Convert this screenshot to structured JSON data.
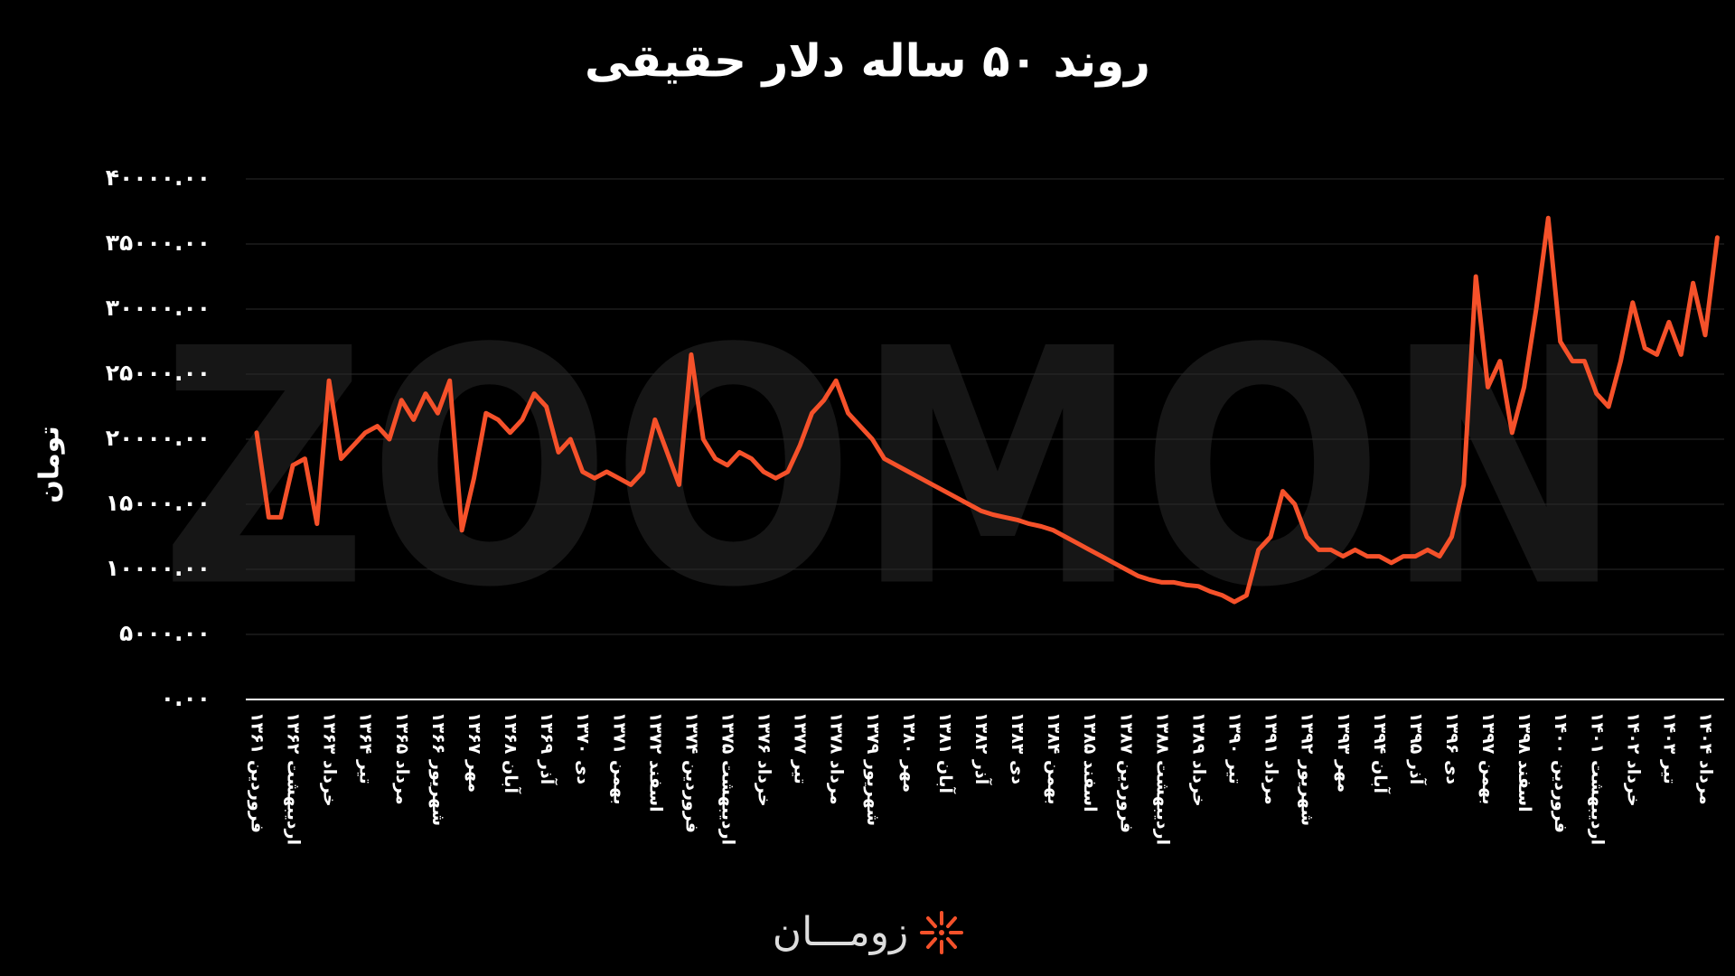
{
  "chart_data": {
    "type": "line",
    "title": "روند ۵۰ ساله دلار حقیقی",
    "y_label": "تومان",
    "watermark": "ZOOMON",
    "logo": "زومـــان",
    "color": "#f5512a",
    "grid": true,
    "ylim": [
      0,
      40000
    ],
    "yticks": [
      {
        "value": 0,
        "label": "۰.۰۰"
      },
      {
        "value": 5000,
        "label": "۵۰۰۰.۰۰"
      },
      {
        "value": 10000,
        "label": "۱۰۰۰۰.۰۰"
      },
      {
        "value": 15000,
        "label": "۱۵۰۰۰.۰۰"
      },
      {
        "value": 20000,
        "label": "۲۰۰۰۰.۰۰"
      },
      {
        "value": 25000,
        "label": "۲۵۰۰۰.۰۰"
      },
      {
        "value": 30000,
        "label": "۳۰۰۰۰.۰۰"
      },
      {
        "value": 35000,
        "label": "۳۵۰۰۰.۰۰"
      },
      {
        "value": 40000,
        "label": "۴۰۰۰۰.۰۰"
      }
    ],
    "categories": [
      "فروردین ۱۳۶۱",
      null,
      null,
      "اردیبهشت ۱۳۶۲",
      null,
      null,
      "خرداد ۱۳۶۳",
      null,
      null,
      "تیر ۱۳۶۴",
      null,
      null,
      "مرداد ۱۳۶۵",
      null,
      null,
      "شهریور ۱۳۶۶",
      null,
      null,
      "مهر ۱۳۶۷",
      null,
      null,
      "آبان ۱۳۶۸",
      null,
      null,
      "آذر ۱۳۶۹",
      null,
      null,
      "دی ۱۳۷۰",
      null,
      null,
      "بهمن ۱۳۷۱",
      null,
      null,
      "اسفند ۱۳۷۲",
      null,
      null,
      "فروردین ۱۳۷۴",
      null,
      null,
      "اردیبهشت ۱۳۷۵",
      null,
      null,
      "خرداد ۱۳۷۶",
      null,
      null,
      "تیر ۱۳۷۷",
      null,
      null,
      "مرداد ۱۳۷۸",
      null,
      null,
      "شهریور ۱۳۷۹",
      null,
      null,
      "مهر ۱۳۸۰",
      null,
      null,
      "آبان ۱۳۸۱",
      null,
      null,
      "آذر ۱۳۸۲",
      null,
      null,
      "دی ۱۳۸۳",
      null,
      null,
      "بهمن ۱۳۸۴",
      null,
      null,
      "اسفند ۱۳۸۵",
      null,
      null,
      "فروردین ۱۳۸۷",
      null,
      null,
      "اردیبهشت ۱۳۸۸",
      null,
      null,
      "خرداد ۱۳۸۹",
      null,
      null,
      "تیر ۱۳۹۰",
      null,
      null,
      "مرداد ۱۳۹۱",
      null,
      null,
      "شهریور ۱۳۹۲",
      null,
      null,
      "مهر ۱۳۹۳",
      null,
      null,
      "آبان ۱۳۹۴",
      null,
      null,
      "آذر ۱۳۹۵",
      null,
      null,
      "دی ۱۳۹۶",
      null,
      null,
      "بهمن ۱۳۹۷",
      null,
      null,
      "اسفند ۱۳۹۸",
      null,
      null,
      "فروردین ۱۴۰۰",
      null,
      null,
      "اردیبهشت ۱۴۰۱",
      null,
      null,
      "خرداد ۱۴۰۲",
      null,
      null,
      "تیر ۱۴۰۳",
      null,
      null,
      "مرداد ۱۴۰۴",
      null
    ],
    "values": [
      20500,
      14000,
      14000,
      18000,
      18500,
      13500,
      24500,
      18500,
      19500,
      20500,
      21000,
      20000,
      23000,
      21500,
      23500,
      22000,
      24500,
      13000,
      17000,
      22000,
      21500,
      20500,
      21500,
      23500,
      22500,
      19000,
      20000,
      17500,
      17000,
      17500,
      17000,
      16500,
      17500,
      21500,
      19000,
      16500,
      26500,
      20000,
      18500,
      18000,
      19000,
      18500,
      17500,
      17000,
      17500,
      19500,
      22000,
      23000,
      24500,
      22000,
      21000,
      20000,
      18500,
      18000,
      17500,
      17000,
      16500,
      16000,
      15500,
      15000,
      14500,
      14200,
      14000,
      13800,
      13500,
      13300,
      13000,
      12500,
      12000,
      11500,
      11000,
      10500,
      10000,
      9500,
      9200,
      9000,
      9000,
      8800,
      8700,
      8300,
      8000,
      7500,
      8000,
      11500,
      12500,
      16000,
      15000,
      12500,
      11500,
      11500,
      11000,
      11500,
      11000,
      11000,
      10500,
      11000,
      11000,
      11500,
      11000,
      12500,
      16500,
      32500,
      24000,
      26000,
      20500,
      24000,
      30000,
      37000,
      27500,
      26000,
      26000,
      23500,
      22500,
      26000,
      30500,
      27000,
      26500,
      29000,
      26500,
      32000,
      28000,
      35500
    ]
  }
}
